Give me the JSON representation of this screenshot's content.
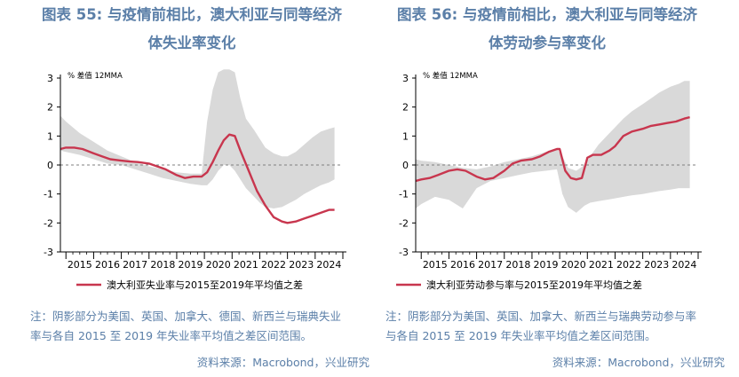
{
  "charts": [
    {
      "title_line1": "图表 55: 与疫情前相比，澳大利亚与同等经济",
      "title_line2": "体失业率变化",
      "note_line1": "注：阴影部分为美国、英国、加拿大、德国、新西兰与瑞典失业",
      "note_line2": "率与各自 2015 至 2019 年失业率平均值之差区间范围。",
      "source": "资料来源：Macrobond，兴业研究",
      "unit_label": "% 差值 12MMA",
      "legend_label": "澳大利亚失业率与2015至2019年平均值之差"
    },
    {
      "title_line1": "图表 56: 与疫情前相比，澳大利亚与同等经济",
      "title_line2": "体劳动参与率变化",
      "note_line1": "注：阴影部分为美国、英国、加拿大、新西兰与瑞典劳动参与率",
      "note_line2": "与各自 2015 至 2019 年失业率平均值之差区间范围。",
      "source": "资料来源：Macrobond，兴业研究",
      "unit_label": "% 差值 12MMA",
      "legend_label": "澳大利亚劳动参与率与2015至2019年平均值之差"
    }
  ],
  "colors": {
    "line": "#c8364e",
    "band": "#d9d9d9",
    "zero_line": "#7f7f7f",
    "title": "#5b7fa8"
  },
  "chart_data": [
    {
      "type": "area",
      "xlabel": "",
      "ylabel": "% 差值 12MMA",
      "ylim": [
        -3,
        3
      ],
      "xlim": [
        2014.8,
        2025.0
      ],
      "x_ticks": [
        "2015",
        "2016",
        "2017",
        "2018",
        "2019",
        "2020",
        "2021",
        "2022",
        "2023",
        "2024"
      ],
      "y_ticks": [
        "3",
        "2",
        "1",
        "0",
        "-1",
        "-2",
        "-3"
      ],
      "grid": false,
      "legend_position": "bottom",
      "band": {
        "x": [
          2014.8,
          2015.0,
          2015.5,
          2016.0,
          2016.5,
          2017.0,
          2017.5,
          2018.0,
          2018.5,
          2019.0,
          2019.5,
          2019.9,
          2020.1,
          2020.3,
          2020.5,
          2020.7,
          2020.9,
          2021.1,
          2021.3,
          2021.5,
          2021.8,
          2022.0,
          2022.2,
          2022.5,
          2022.8,
          2023.0,
          2023.3,
          2023.6,
          2023.9,
          2024.2,
          2024.5,
          2024.7
        ],
        "upper": [
          1.7,
          1.5,
          1.1,
          0.8,
          0.5,
          0.3,
          0.1,
          -0.05,
          -0.15,
          -0.25,
          -0.3,
          -0.3,
          1.5,
          2.6,
          3.2,
          3.3,
          3.3,
          3.2,
          2.3,
          1.6,
          1.2,
          0.9,
          0.6,
          0.4,
          0.3,
          0.3,
          0.45,
          0.7,
          0.95,
          1.15,
          1.25,
          1.3
        ],
        "lower": [
          0.5,
          0.45,
          0.35,
          0.2,
          0.05,
          0.0,
          -0.15,
          -0.3,
          -0.45,
          -0.55,
          -0.65,
          -0.7,
          -0.7,
          -0.5,
          -0.2,
          0.0,
          0.0,
          -0.2,
          -0.5,
          -0.8,
          -1.1,
          -1.3,
          -1.45,
          -1.5,
          -1.45,
          -1.35,
          -1.2,
          -1.0,
          -0.85,
          -0.7,
          -0.6,
          -0.5
        ]
      },
      "series": [
        {
          "name": "澳大利亚失业率与2015至2019年平均值之差",
          "x": [
            2014.8,
            2015.0,
            2015.3,
            2015.6,
            2016.0,
            2016.3,
            2016.6,
            2017.0,
            2017.3,
            2017.6,
            2018.0,
            2018.3,
            2018.6,
            2019.0,
            2019.3,
            2019.6,
            2019.9,
            2020.1,
            2020.3,
            2020.5,
            2020.7,
            2020.9,
            2021.1,
            2021.3,
            2021.6,
            2021.9,
            2022.2,
            2022.5,
            2022.8,
            2023.0,
            2023.3,
            2023.6,
            2023.9,
            2024.2,
            2024.5,
            2024.7
          ],
          "values": [
            0.55,
            0.6,
            0.6,
            0.55,
            0.4,
            0.3,
            0.2,
            0.15,
            0.12,
            0.1,
            0.05,
            -0.05,
            -0.15,
            -0.35,
            -0.45,
            -0.4,
            -0.4,
            -0.25,
            0.1,
            0.5,
            0.85,
            1.05,
            1.0,
            0.5,
            -0.2,
            -0.9,
            -1.4,
            -1.8,
            -1.95,
            -2.0,
            -1.95,
            -1.85,
            -1.75,
            -1.65,
            -1.55,
            -1.55
          ]
        }
      ]
    },
    {
      "type": "area",
      "xlabel": "",
      "ylabel": "% 差值 12MMA",
      "ylim": [
        -3,
        3
      ],
      "xlim": [
        2014.8,
        2025.0
      ],
      "x_ticks": [
        "2015",
        "2016",
        "2017",
        "2018",
        "2019",
        "2020",
        "2021",
        "2022",
        "2023",
        "2024"
      ],
      "y_ticks": [
        "3",
        "2",
        "1",
        "0",
        "-1",
        "-2",
        "-3"
      ],
      "grid": false,
      "legend_position": "bottom",
      "band": {
        "x": [
          2014.8,
          2015.0,
          2015.5,
          2016.0,
          2016.5,
          2017.0,
          2017.5,
          2018.0,
          2018.5,
          2019.0,
          2019.5,
          2019.9,
          2020.1,
          2020.3,
          2020.6,
          2020.9,
          2021.1,
          2021.4,
          2021.7,
          2022.0,
          2022.3,
          2022.6,
          2023.0,
          2023.3,
          2023.6,
          2024.0,
          2024.3,
          2024.5,
          2024.7
        ],
        "upper": [
          0.2,
          0.15,
          0.1,
          0.0,
          -0.1,
          -0.15,
          -0.05,
          0.1,
          0.2,
          0.3,
          0.45,
          0.55,
          0.3,
          -0.1,
          -0.2,
          0.0,
          0.3,
          0.7,
          1.0,
          1.3,
          1.6,
          1.85,
          2.1,
          2.3,
          2.5,
          2.7,
          2.8,
          2.9,
          2.9
        ],
        "lower": [
          -1.5,
          -1.35,
          -1.1,
          -1.2,
          -1.5,
          -0.8,
          -0.55,
          -0.45,
          -0.35,
          -0.25,
          -0.2,
          -0.15,
          -1.0,
          -1.45,
          -1.65,
          -1.4,
          -1.3,
          -1.25,
          -1.2,
          -1.15,
          -1.1,
          -1.05,
          -1.0,
          -0.95,
          -0.9,
          -0.85,
          -0.8,
          -0.8,
          -0.8
        ]
      },
      "series": [
        {
          "name": "澳大利亚劳动参与率与2015至2019年平均值之差",
          "x": [
            2014.8,
            2015.0,
            2015.3,
            2015.6,
            2016.0,
            2016.3,
            2016.6,
            2017.0,
            2017.3,
            2017.6,
            2018.0,
            2018.3,
            2018.6,
            2019.0,
            2019.3,
            2019.6,
            2019.9,
            2020.0,
            2020.2,
            2020.4,
            2020.6,
            2020.8,
            2021.0,
            2021.2,
            2021.5,
            2021.8,
            2022.0,
            2022.3,
            2022.6,
            2023.0,
            2023.3,
            2023.6,
            2023.9,
            2024.2,
            2024.5,
            2024.7
          ],
          "values": [
            -0.55,
            -0.5,
            -0.45,
            -0.35,
            -0.2,
            -0.15,
            -0.2,
            -0.4,
            -0.5,
            -0.45,
            -0.2,
            0.05,
            0.15,
            0.2,
            0.3,
            0.45,
            0.55,
            0.55,
            -0.2,
            -0.45,
            -0.5,
            -0.45,
            0.25,
            0.35,
            0.35,
            0.5,
            0.65,
            1.0,
            1.15,
            1.25,
            1.35,
            1.4,
            1.45,
            1.5,
            1.6,
            1.65
          ]
        }
      ]
    }
  ]
}
